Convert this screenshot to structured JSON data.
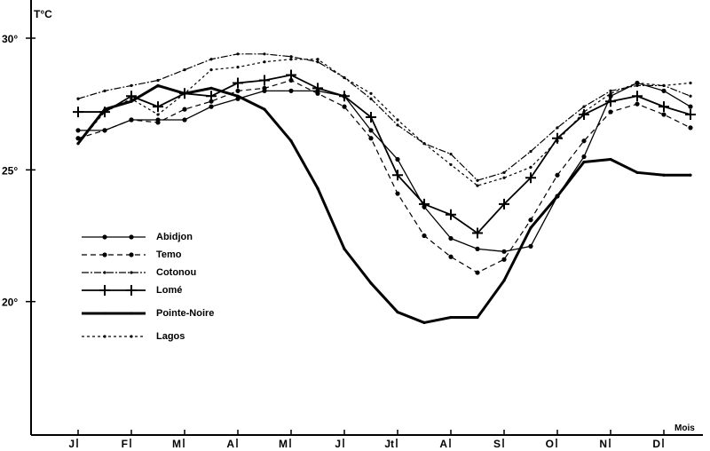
{
  "chart_data": {
    "type": "line",
    "ylabel": "T°C",
    "xlabel": "Mois",
    "ylim": [
      15,
      31.5
    ],
    "xlim": [
      0.1,
      13
    ],
    "grid": false,
    "legend_position": "center-left",
    "y_ticks": [
      {
        "value": 30,
        "label": "30°"
      },
      {
        "value": 25,
        "label": "25°"
      },
      {
        "value": 20,
        "label": "20°"
      }
    ],
    "x_ticks": [
      {
        "value": 1,
        "label": "J"
      },
      {
        "value": 2,
        "label": "F"
      },
      {
        "value": 3,
        "label": "M"
      },
      {
        "value": 4,
        "label": "A"
      },
      {
        "value": 5,
        "label": "M"
      },
      {
        "value": 6,
        "label": "J"
      },
      {
        "value": 7,
        "label": "Jt"
      },
      {
        "value": 8,
        "label": "A"
      },
      {
        "value": 9,
        "label": "S"
      },
      {
        "value": 10,
        "label": "O"
      },
      {
        "value": 11,
        "label": "N"
      },
      {
        "value": 12,
        "label": "D"
      }
    ],
    "x": [
      1,
      1.5,
      2,
      2.5,
      3,
      3.5,
      4,
      4.5,
      5,
      5.5,
      6,
      6.5,
      7,
      7.5,
      8,
      8.5,
      9,
      9.5,
      10,
      10.5,
      11,
      11.5,
      12,
      12.5
    ],
    "series": [
      {
        "name": "Abidjon",
        "style": "solid-dots",
        "values": [
          26.5,
          26.5,
          26.9,
          26.9,
          26.9,
          27.4,
          27.7,
          28.0,
          28.0,
          28.0,
          27.8,
          26.5,
          25.4,
          23.6,
          22.4,
          22.0,
          21.9,
          22.1,
          24.0,
          25.5,
          27.8,
          28.3,
          28.0,
          27.4
        ]
      },
      {
        "name": "Temo",
        "style": "dashed-dots",
        "values": [
          26.2,
          26.5,
          26.9,
          26.8,
          27.3,
          27.6,
          28.0,
          28.1,
          28.4,
          27.9,
          27.4,
          26.2,
          24.1,
          22.5,
          21.7,
          21.1,
          21.6,
          23.1,
          24.8,
          26.1,
          27.2,
          27.5,
          27.1,
          26.6
        ]
      },
      {
        "name": "Cotonou",
        "style": "dash-small",
        "values": [
          27.7,
          28.0,
          28.2,
          28.4,
          28.8,
          29.2,
          29.4,
          29.4,
          29.3,
          29.1,
          28.5,
          27.7,
          26.7,
          26.0,
          25.6,
          24.6,
          24.9,
          25.7,
          26.6,
          27.4,
          28.0,
          28.2,
          28.2,
          27.8
        ]
      },
      {
        "name": "Lomé",
        "style": "solid-plus",
        "values": [
          27.2,
          27.2,
          27.8,
          27.4,
          27.9,
          27.8,
          28.3,
          28.4,
          28.6,
          28.1,
          27.8,
          27.0,
          24.8,
          23.7,
          23.3,
          22.6,
          23.7,
          24.7,
          26.2,
          27.1,
          27.6,
          27.8,
          27.4,
          27.1
        ]
      },
      {
        "name": "Pointe-Noire",
        "style": "thick",
        "values": [
          26.0,
          27.3,
          27.6,
          28.2,
          27.9,
          28.1,
          27.8,
          27.3,
          26.1,
          24.3,
          22.0,
          20.7,
          19.6,
          19.2,
          19.4,
          19.4,
          20.8,
          22.8,
          24.0,
          25.3,
          25.4,
          24.9,
          24.8,
          24.8
        ]
      },
      {
        "name": "Lagos",
        "style": "dotted",
        "values": [
          26.0,
          27.2,
          27.7,
          27.1,
          27.9,
          28.8,
          28.9,
          29.1,
          29.2,
          29.2,
          28.5,
          27.9,
          26.9,
          26.0,
          25.2,
          24.4,
          24.7,
          25.1,
          26.1,
          27.2,
          27.9,
          28.3,
          28.2,
          28.3
        ]
      }
    ],
    "colors": {
      "ink": "#000000",
      "background": "#ffffff"
    }
  }
}
